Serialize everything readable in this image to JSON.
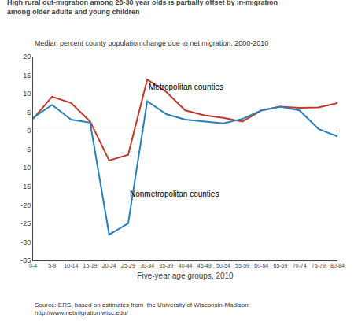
{
  "chart_data": {
    "type": "line",
    "title": [
      "High rural out-migration among 20-30 year olds is partially offset by in-migration",
      "among older adults and young children"
    ],
    "subtitle": "Median percent county population change due to net migration, 2000-2010",
    "xlabel": "Five-year age groups, 2010",
    "source": [
      "Source: ERS, based on estimates from  the University of Wisconsin-Madison:",
      "http://www.netmigration.wisc.edu/"
    ],
    "categories": [
      "0-4",
      "5-9",
      "10-14",
      "15-19",
      "20-24",
      "25-29",
      "30-34",
      "35-39",
      "40-44",
      "45-49",
      "50-54",
      "55-59",
      "60-64",
      "65-69",
      "70-74",
      "75-79",
      "80-84"
    ],
    "series": [
      {
        "name": "Metropolitan counties",
        "color": "#c0392b",
        "values": [
          3.2,
          9.2,
          7.5,
          2.5,
          -8.0,
          -6.5,
          13.8,
          10.5,
          5.5,
          4.2,
          3.5,
          2.5,
          5.5,
          6.5,
          6.2,
          6.3,
          7.5
        ]
      },
      {
        "name": "Nonmetropolitan counties",
        "color": "#2980b9",
        "values": [
          3.5,
          7.0,
          3.0,
          2.2,
          -28.0,
          -25.0,
          8.0,
          4.5,
          3.0,
          2.5,
          2.0,
          3.2,
          5.5,
          6.5,
          5.5,
          0.5,
          -1.5
        ]
      }
    ],
    "annotations": [
      {
        "text": "Metropolitan counties",
        "x": "30-34",
        "y": 13.5
      },
      {
        "text": "Nonmetropolitan counties",
        "x": "25-29",
        "y": -15.5
      }
    ],
    "ylim": [
      -35,
      20
    ],
    "yticks": [
      -35,
      -30,
      -25,
      -20,
      -15,
      -10,
      -5,
      0,
      5,
      10,
      15,
      20
    ],
    "grid": false
  }
}
